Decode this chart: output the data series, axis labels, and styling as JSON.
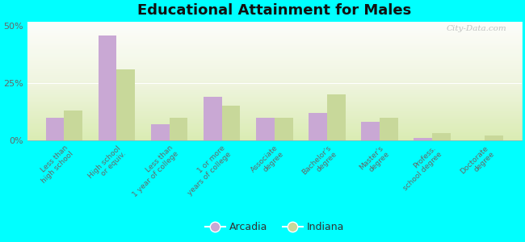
{
  "title": "Educational Attainment for Males",
  "categories": [
    "Less than\nhigh school",
    "High school\nor equiv.",
    "Less than\n1 year of college",
    "1 or more\nyears of college",
    "Associate\ndegree",
    "Bachelor's\ndegree",
    "Master's\ndegree",
    "Profess.\nschool degree",
    "Doctorate\ndegree"
  ],
  "arcadia": [
    10,
    46,
    7,
    19,
    10,
    12,
    8,
    1,
    0
  ],
  "indiana": [
    13,
    31,
    10,
    15,
    10,
    20,
    10,
    3,
    2
  ],
  "arcadia_color": "#c9a8d4",
  "indiana_color": "#c8d89a",
  "background_fig": "#00ffff",
  "ylim": [
    0,
    52
  ],
  "yticks": [
    0,
    25,
    50
  ],
  "ytick_labels": [
    "0%",
    "25%",
    "50%"
  ],
  "bar_width": 0.35,
  "legend_labels": [
    "Arcadia",
    "Indiana"
  ],
  "watermark": "City-Data.com"
}
